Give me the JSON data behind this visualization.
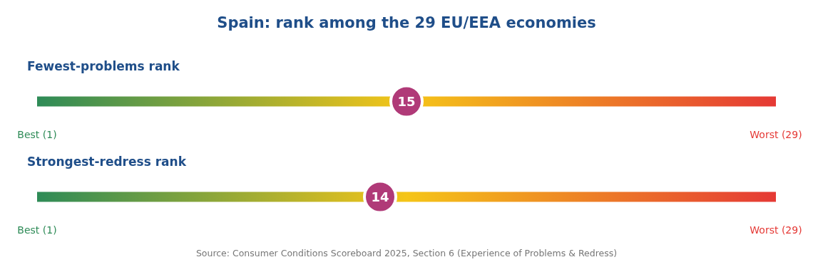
{
  "chart_data": {
    "type": "scatter",
    "orientation": "horizontal",
    "title": "Spain: rank among the 29 EU/EEA economies",
    "categories": [
      "Fewest-problems rank",
      "Strongest-redress rank"
    ],
    "values": [
      15,
      14
    ],
    "color": "#b03a78",
    "xlim": [
      1,
      29
    ],
    "xticks": [
      {
        "value": 1,
        "label": "Best (1)"
      },
      {
        "value": 29,
        "label": "Worst (29)"
      }
    ],
    "data_labels": true,
    "bands": [
      {
        "axis": "x",
        "from": 1,
        "to": 29
      },
      {
        "axis": "x",
        "from": 1,
        "to": 29
      }
    ],
    "annotations": [
      "Source: Consumer Conditions Scoreboard 2025, Section 6 (Experience of Problems & Redress)"
    ]
  }
}
